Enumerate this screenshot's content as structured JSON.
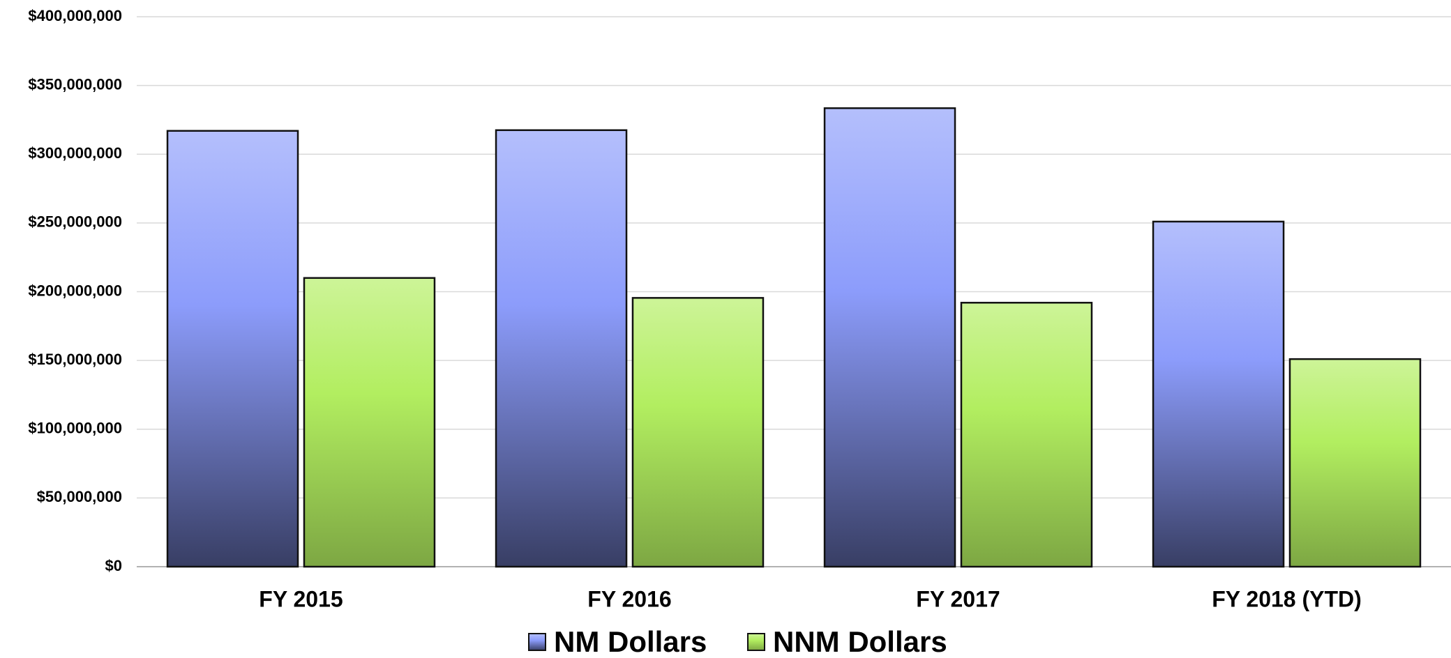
{
  "chart_data": {
    "type": "bar",
    "categories": [
      "FY 2015",
      "FY 2016",
      "FY 2017",
      "FY 2018 (YTD)"
    ],
    "series": [
      {
        "name": "NM Dollars",
        "color": "#8c9cfb",
        "values": [
          317000000,
          317500000,
          333500000,
          251000000
        ]
      },
      {
        "name": "NNM Dollars",
        "color": "#b2ee60",
        "values": [
          210000000,
          195500000,
          192000000,
          151000000
        ]
      }
    ],
    "ylim": [
      0,
      400000000
    ],
    "yticks": [
      {
        "value": 0,
        "label": "$0"
      },
      {
        "value": 50000000,
        "label": "$50,000,000"
      },
      {
        "value": 100000000,
        "label": "$100,000,000"
      },
      {
        "value": 150000000,
        "label": "$150,000,000"
      },
      {
        "value": 200000000,
        "label": "$200,000,000"
      },
      {
        "value": 250000000,
        "label": "$250,000,000"
      },
      {
        "value": 300000000,
        "label": "$300,000,000"
      },
      {
        "value": 350000000,
        "label": "$350,000,000"
      },
      {
        "value": 400000000,
        "label": "$400,000,000"
      }
    ],
    "grid": true,
    "legend": "bottom"
  }
}
